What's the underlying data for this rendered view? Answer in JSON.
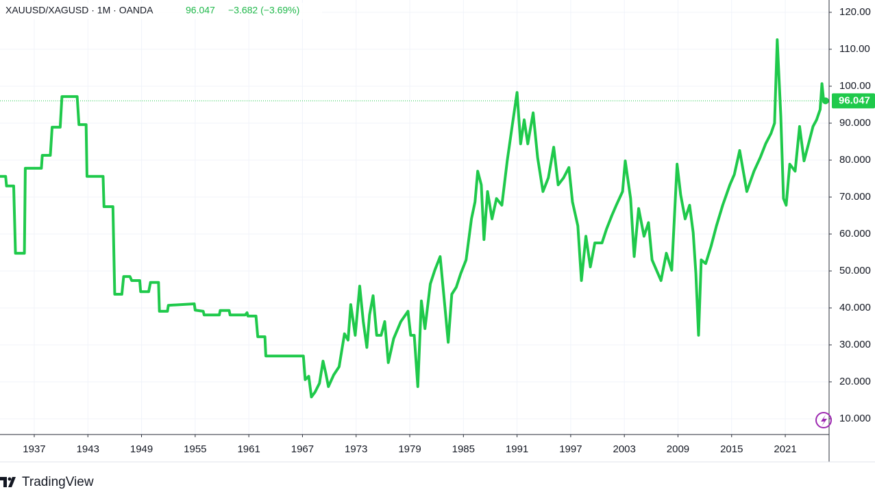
{
  "chart_data": {
    "type": "line",
    "title": "XAUUSD/XAGUSD · 1M · OANDA",
    "last_price": 96.047,
    "change": "−3.682 (−3.69%)",
    "footer": "TradingView",
    "grid": true,
    "xlim": [
      1933.17,
      2025.9
    ],
    "xticks": [
      1937,
      1943,
      1949,
      1955,
      1961,
      1967,
      1973,
      1979,
      1985,
      1991,
      1997,
      2003,
      2009,
      2015,
      2021
    ],
    "ylim": [
      5.74,
      123.33
    ],
    "yticks": [
      {
        "value": 120,
        "label": "120.00"
      },
      {
        "value": 110,
        "label": "110.00"
      },
      {
        "value": 100,
        "label": "100.00"
      },
      {
        "value": 90,
        "label": "90.000"
      },
      {
        "value": 80,
        "label": "80.000"
      },
      {
        "value": 70,
        "label": "70.000"
      },
      {
        "value": 60,
        "label": "60.000"
      },
      {
        "value": 50,
        "label": "50.000"
      },
      {
        "value": 40,
        "label": "40.000"
      },
      {
        "value": 30,
        "label": "30.000"
      },
      {
        "value": 20,
        "label": "20.000"
      },
      {
        "value": 10,
        "label": "10.000"
      }
    ],
    "x": [
      1933.2,
      1933.8,
      1933.9,
      1934.7,
      1934.9,
      1935.9,
      1936.0,
      1937.8,
      1937.9,
      1938.8,
      1939.0,
      1939.9,
      1940.1,
      1941.8,
      1942.0,
      1942.8,
      1942.9,
      1944.7,
      1944.8,
      1945.8,
      1946.0,
      1946.8,
      1947.0,
      1947.7,
      1947.9,
      1948.8,
      1948.9,
      1949.8,
      1950.0,
      1950.9,
      1951.0,
      1951.9,
      1952.0,
      1954.9,
      1955.0,
      1955.9,
      1956.0,
      1957.7,
      1957.8,
      1958.8,
      1958.9,
      1960.6,
      1960.8,
      1960.9,
      1961.8,
      1962.0,
      1962.8,
      1962.9,
      1967.1,
      1967.3,
      1967.7,
      1968.0,
      1968.4,
      1968.9,
      1969.3,
      1969.6,
      1969.9,
      1970.5,
      1971.1,
      1971.7,
      1972.1,
      1972.4,
      1972.9,
      1973.4,
      1973.8,
      1974.2,
      1974.5,
      1974.9,
      1975.3,
      1975.8,
      1976.2,
      1976.6,
      1977.2,
      1978.0,
      1978.8,
      1979.1,
      1979.5,
      1979.9,
      1980.3,
      1980.7,
      1981.3,
      1981.8,
      1982.4,
      1982.8,
      1983.3,
      1983.7,
      1984.2,
      1984.7,
      1985.3,
      1985.9,
      1986.3,
      1986.6,
      1987.0,
      1987.3,
      1987.7,
      1988.2,
      1988.7,
      1989.3,
      1989.9,
      1990.5,
      1991.0,
      1991.4,
      1991.8,
      1992.2,
      1992.8,
      1993.3,
      1993.9,
      1994.5,
      1995.1,
      1995.6,
      1996.2,
      1996.8,
      1997.2,
      1997.8,
      1998.2,
      1998.7,
      1999.2,
      1999.7,
      2000.5,
      2001.0,
      2001.6,
      2002.1,
      2002.8,
      2003.1,
      2003.7,
      2004.1,
      2004.6,
      2005.2,
      2005.7,
      2006.1,
      2006.6,
      2007.1,
      2007.7,
      2008.3,
      2008.9,
      2009.3,
      2009.8,
      2010.3,
      2010.7,
      2011.0,
      2011.3,
      2011.6,
      2012.1,
      2012.7,
      2013.3,
      2014.0,
      2014.8,
      2015.3,
      2015.9,
      2016.7,
      2017.5,
      2018.2,
      2018.8,
      2019.4,
      2019.8,
      2020.1,
      2020.5,
      2020.8,
      2021.1,
      2021.5,
      2022.1,
      2022.6,
      2023.1,
      2023.6,
      2024.1,
      2024.5,
      2024.9,
      2025.1,
      2025.3,
      2025.5
    ],
    "series": [
      {
        "name": "XAUUSD/XAGUSD",
        "color": "#1fc94b",
        "values": [
          75.6,
          75.6,
          73.0,
          73.0,
          54.8,
          54.8,
          77.8,
          77.8,
          81.3,
          81.3,
          88.9,
          88.9,
          97.2,
          97.2,
          89.6,
          89.6,
          75.6,
          75.6,
          67.4,
          67.4,
          43.7,
          43.7,
          48.5,
          48.5,
          47.4,
          47.4,
          44.4,
          44.4,
          46.9,
          46.9,
          39.1,
          39.1,
          40.7,
          41.1,
          39.4,
          39.1,
          38.1,
          38.1,
          39.3,
          39.3,
          38.1,
          38.1,
          38.7,
          37.8,
          37.8,
          32.2,
          32.2,
          27.0,
          27.0,
          20.6,
          21.5,
          15.9,
          17.2,
          19.6,
          25.6,
          22.4,
          18.7,
          21.9,
          24.1,
          33.0,
          31.3,
          40.9,
          32.6,
          45.9,
          36.3,
          29.3,
          38.1,
          43.3,
          32.6,
          32.6,
          36.3,
          25.2,
          31.7,
          36.3,
          39.1,
          32.6,
          32.6,
          18.7,
          41.9,
          34.4,
          46.5,
          50.2,
          53.9,
          43.7,
          30.7,
          43.7,
          45.6,
          49.3,
          53.0,
          64.1,
          68.7,
          77.0,
          73.3,
          58.5,
          71.5,
          64.1,
          69.6,
          67.8,
          79.8,
          90.0,
          98.3,
          84.4,
          90.9,
          84.4,
          92.8,
          80.7,
          71.5,
          75.2,
          83.5,
          73.3,
          75.2,
          78.0,
          68.7,
          62.2,
          47.4,
          59.4,
          51.1,
          57.6,
          57.6,
          61.3,
          65.0,
          67.8,
          71.5,
          79.8,
          69.6,
          53.9,
          66.9,
          59.4,
          63.1,
          53.0,
          50.2,
          47.4,
          54.8,
          50.2,
          78.9,
          70.6,
          64.1,
          67.8,
          60.4,
          49.3,
          32.6,
          53.0,
          52.0,
          56.7,
          62.2,
          67.8,
          73.3,
          76.1,
          82.6,
          71.5,
          77.0,
          80.7,
          84.4,
          87.2,
          90.0,
          112.6,
          91.9,
          69.6,
          67.8,
          78.9,
          77.0,
          89.1,
          79.8,
          84.4,
          89.1,
          90.9,
          93.7,
          100.7,
          95.9,
          96.047
        ]
      }
    ]
  }
}
